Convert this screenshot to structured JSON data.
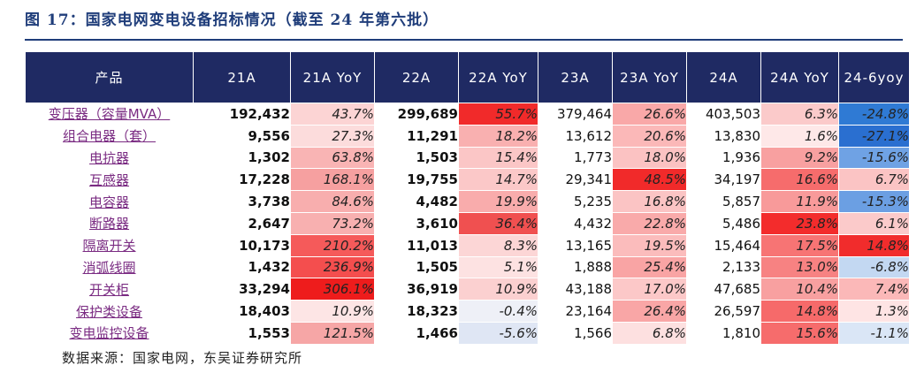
{
  "title": "图 17：国家电网变电设备招标情况（截至 24 年第六批）",
  "source": "数据来源：国家电网，东吴证券研究所",
  "columns": [
    "产品",
    "21A",
    "21A YoY",
    "22A",
    "22A YoY",
    "23A",
    "23A YoY",
    "24A",
    "24A YoY",
    "24-6yoy"
  ],
  "rows": [
    {
      "product": "变压器（容量MVA）",
      "v21": "192,432",
      "y21": "43.7%",
      "v22": "299,689",
      "y22": "55.7%",
      "v23": "379,464",
      "y23": "26.6%",
      "v24": "403,503",
      "y24": "6.3%",
      "y246": "-24.8%"
    },
    {
      "product": "组合电器（套）",
      "v21": "9,556",
      "y21": "27.3%",
      "v22": "11,291",
      "y22": "18.2%",
      "v23": "13,612",
      "y23": "20.6%",
      "v24": "13,830",
      "y24": "1.6%",
      "y246": "-27.1%"
    },
    {
      "product": "电抗器",
      "v21": "1,302",
      "y21": "63.8%",
      "v22": "1,503",
      "y22": "15.4%",
      "v23": "1,773",
      "y23": "18.0%",
      "v24": "1,936",
      "y24": "9.2%",
      "y246": "-15.6%"
    },
    {
      "product": "互感器",
      "v21": "17,228",
      "y21": "168.1%",
      "v22": "19,755",
      "y22": "14.7%",
      "v23": "29,341",
      "y23": "48.5%",
      "v24": "34,197",
      "y24": "16.6%",
      "y246": "6.7%"
    },
    {
      "product": "电容器",
      "v21": "3,738",
      "y21": "84.6%",
      "v22": "4,482",
      "y22": "19.9%",
      "v23": "5,235",
      "y23": "16.8%",
      "v24": "5,857",
      "y24": "11.9%",
      "y246": "-15.3%"
    },
    {
      "product": "断路器",
      "v21": "2,647",
      "y21": "73.2%",
      "v22": "3,610",
      "y22": "36.4%",
      "v23": "4,432",
      "y23": "22.8%",
      "v24": "5,486",
      "y24": "23.8%",
      "y246": "6.1%"
    },
    {
      "product": "隔离开关",
      "v21": "10,173",
      "y21": "210.2%",
      "v22": "11,013",
      "y22": "8.3%",
      "v23": "13,165",
      "y23": "19.5%",
      "v24": "15,464",
      "y24": "17.5%",
      "y246": "14.8%"
    },
    {
      "product": "消弧线圈",
      "v21": "1,432",
      "y21": "236.9%",
      "v22": "1,505",
      "y22": "5.1%",
      "v23": "1,888",
      "y23": "25.4%",
      "v24": "2,133",
      "y24": "13.0%",
      "y246": "-6.8%"
    },
    {
      "product": "开关柜",
      "v21": "33,294",
      "y21": "306.1%",
      "v22": "36,919",
      "y22": "10.9%",
      "v23": "43,188",
      "y23": "17.0%",
      "v24": "47,685",
      "y24": "10.4%",
      "y246": "7.4%"
    },
    {
      "product": "保护类设备",
      "v21": "18,403",
      "y21": "10.9%",
      "v22": "18,323",
      "y22": "-0.4%",
      "v23": "23,164",
      "y23": "26.4%",
      "v24": "26,597",
      "y24": "14.8%",
      "y246": "1.3%"
    },
    {
      "product": "变电监控设备",
      "v21": "1,553",
      "y21": "121.5%",
      "v22": "1,466",
      "y22": "-5.6%",
      "v23": "1,566",
      "y23": "6.8%",
      "v24": "1,810",
      "y24": "15.6%",
      "y246": "-1.1%"
    }
  ],
  "colors": {
    "header_bg": "#1f2a63",
    "title": "#1f3d7a",
    "product_link": "#7a2b82",
    "yoy_21a": [
      "#fcd4d4",
      "#fcdcdc",
      "#f9b4b4",
      "#f6a0a0",
      "#f8aeae",
      "#f8b0b0",
      "#f55a5a",
      "#f44e4e",
      "#ee1c1c",
      "#fde5e5",
      "#f6a6a6"
    ],
    "yoy_22a": [
      "#f12a2a",
      "#f9b0b0",
      "#fbc6c6",
      "#fbc8c8",
      "#f9acac",
      "#f05050",
      "#fcd6d6",
      "#fde2e2",
      "#fbd0d0",
      "#eef0f7",
      "#dfe6f4"
    ],
    "yoy_23a": [
      "#f9a8a8",
      "#fbb8b8",
      "#fbc2c2",
      "#f12a2a",
      "#fbc4c4",
      "#f9aaaa",
      "#fbbcbc",
      "#f9a4a4",
      "#fcc8c8",
      "#f9a6a6",
      "#fde0e0"
    ],
    "yoy_24a": [
      "#fbcaca",
      "#fee8e8",
      "#f8a0a0",
      "#f66c6c",
      "#f89a9a",
      "#f32c2c",
      "#f77474",
      "#f78282",
      "#f8a0a0",
      "#f66a6a",
      "#f66c6c"
    ],
    "yoy_246": [
      "#2f7ad4",
      "#2a6fd0",
      "#6fa2e4",
      "#fbc4c4",
      "#6b9fe3",
      "#fbcaca",
      "#f12c2c",
      "#c3d8f2",
      "#fbb8b8",
      "#fee4e4",
      "#dae6f6"
    ]
  }
}
